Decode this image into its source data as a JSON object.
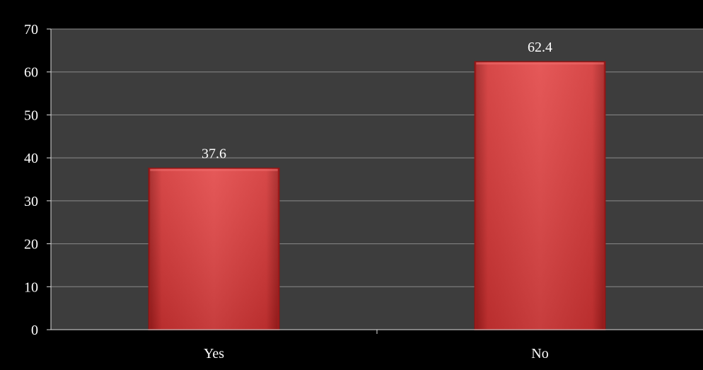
{
  "chart_data": {
    "type": "bar",
    "categories": [
      "Yes",
      "No"
    ],
    "values": [
      37.6,
      62.4
    ],
    "value_labels": [
      "37.6",
      "62.4"
    ],
    "ylim": [
      0,
      70
    ],
    "yticks": [
      0,
      10,
      20,
      30,
      40,
      50,
      60,
      70
    ],
    "title": "",
    "xlabel": "",
    "ylabel": "",
    "grid": true,
    "legend": "none",
    "colors": {
      "page_background": "#000000",
      "plot_background": "#3d3d3d",
      "bar_fill": "#d83a3a",
      "bar_edge": "#8e1616",
      "gridline": "#8a8a8a",
      "axis_line": "#e0e0e0",
      "tick_label": "#ffffff",
      "data_label": "#ffffff"
    }
  }
}
